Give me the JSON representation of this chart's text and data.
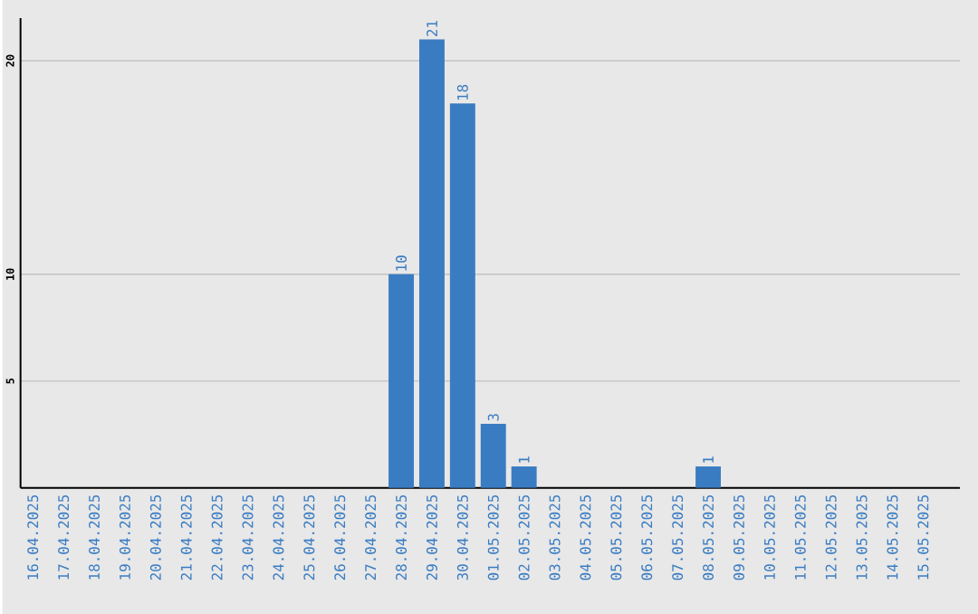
{
  "chart_data": {
    "type": "bar",
    "categories": [
      "16.04.2025",
      "17.04.2025",
      "18.04.2025",
      "19.04.2025",
      "20.04.2025",
      "21.04.2025",
      "22.04.2025",
      "23.04.2025",
      "24.04.2025",
      "25.04.2025",
      "26.04.2025",
      "27.04.2025",
      "28.04.2025",
      "29.04.2025",
      "30.04.2025",
      "01.05.2025",
      "02.05.2025",
      "03.05.2025",
      "04.05.2025",
      "05.05.2025",
      "06.05.2025",
      "07.05.2025",
      "08.05.2025",
      "09.05.2025",
      "10.05.2025",
      "11.05.2025",
      "12.05.2025",
      "13.05.2025",
      "14.05.2025",
      "15.05.2025"
    ],
    "values": [
      0,
      0,
      0,
      0,
      0,
      0,
      0,
      0,
      0,
      0,
      0,
      0,
      10,
      21,
      18,
      3,
      1,
      0,
      0,
      0,
      0,
      0,
      1,
      0,
      0,
      0,
      0,
      0,
      0,
      0
    ],
    "value_labels": [
      null,
      null,
      null,
      null,
      null,
      null,
      null,
      null,
      null,
      null,
      null,
      null,
      "10",
      "21",
      "18",
      "3",
      "1",
      null,
      null,
      null,
      null,
      null,
      "1",
      null,
      null,
      null,
      null,
      null,
      null,
      null
    ],
    "color": "#3a7cc2",
    "ylim": [
      0,
      22
    ],
    "yticks": [
      5,
      10,
      20
    ],
    "grid": "y"
  }
}
